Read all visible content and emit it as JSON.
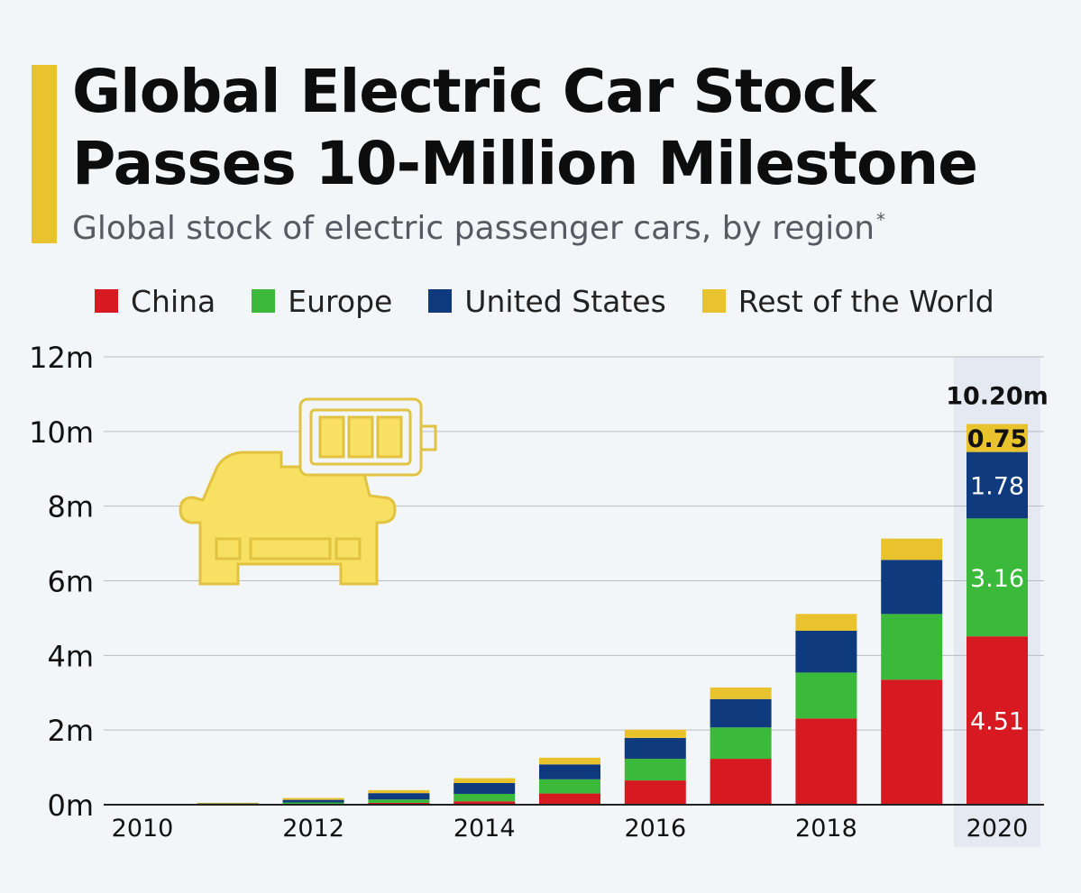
{
  "header": {
    "title": "Global Electric Car Stock Passes 10-Million Milestone",
    "subtitle": "Global stock of electric passenger cars, by region",
    "subtitle_footnote": "*"
  },
  "colors": {
    "accent": "#e8c32e",
    "china": "#d71a21",
    "europe": "#3ab93a",
    "united_states": "#0f3a7d",
    "rest_of_world": "#e8c32e",
    "highlight_band": "#e4e9f2",
    "icon_fill": "#f8e162",
    "icon_stroke": "#e2c341"
  },
  "legend": [
    {
      "name": "China",
      "color": "#d71a21"
    },
    {
      "name": "Europe",
      "color": "#3ab93a"
    },
    {
      "name": "United States",
      "color": "#0f3a7d"
    },
    {
      "name": "Rest of the World",
      "color": "#e8c32e"
    }
  ],
  "icons": [
    "electric-car-icon",
    "battery-icon"
  ],
  "chart_data": {
    "type": "bar",
    "stacked": true,
    "x": [
      2010,
      2011,
      2012,
      2013,
      2014,
      2015,
      2016,
      2017,
      2018,
      2019,
      2020
    ],
    "x_tick_labels": [
      "2010",
      "2012",
      "2014",
      "2016",
      "2018",
      "2020"
    ],
    "y_tick_labels": [
      "0m",
      "2m",
      "4m",
      "6m",
      "8m",
      "10m",
      "12m"
    ],
    "ylim": [
      0,
      12
    ],
    "grid": true,
    "series": [
      {
        "name": "China",
        "values": [
          0.0,
          0.01,
          0.02,
          0.05,
          0.09,
          0.3,
          0.65,
          1.23,
          2.31,
          3.35,
          4.51
        ]
      },
      {
        "name": "Europe",
        "values": [
          0.0,
          0.01,
          0.04,
          0.09,
          0.2,
          0.38,
          0.58,
          0.84,
          1.23,
          1.76,
          3.16
        ]
      },
      {
        "name": "United States",
        "values": [
          0.0,
          0.02,
          0.07,
          0.17,
          0.29,
          0.4,
          0.56,
          0.76,
          1.12,
          1.45,
          1.78
        ]
      },
      {
        "name": "Rest of the World",
        "values": [
          0.0,
          0.01,
          0.05,
          0.08,
          0.13,
          0.18,
          0.22,
          0.31,
          0.45,
          0.57,
          0.75
        ]
      }
    ],
    "highlight": {
      "year": 2020,
      "total_label": "10.20m",
      "segment_labels": [
        "4.51",
        "3.16",
        "1.78",
        "0.75"
      ]
    }
  }
}
